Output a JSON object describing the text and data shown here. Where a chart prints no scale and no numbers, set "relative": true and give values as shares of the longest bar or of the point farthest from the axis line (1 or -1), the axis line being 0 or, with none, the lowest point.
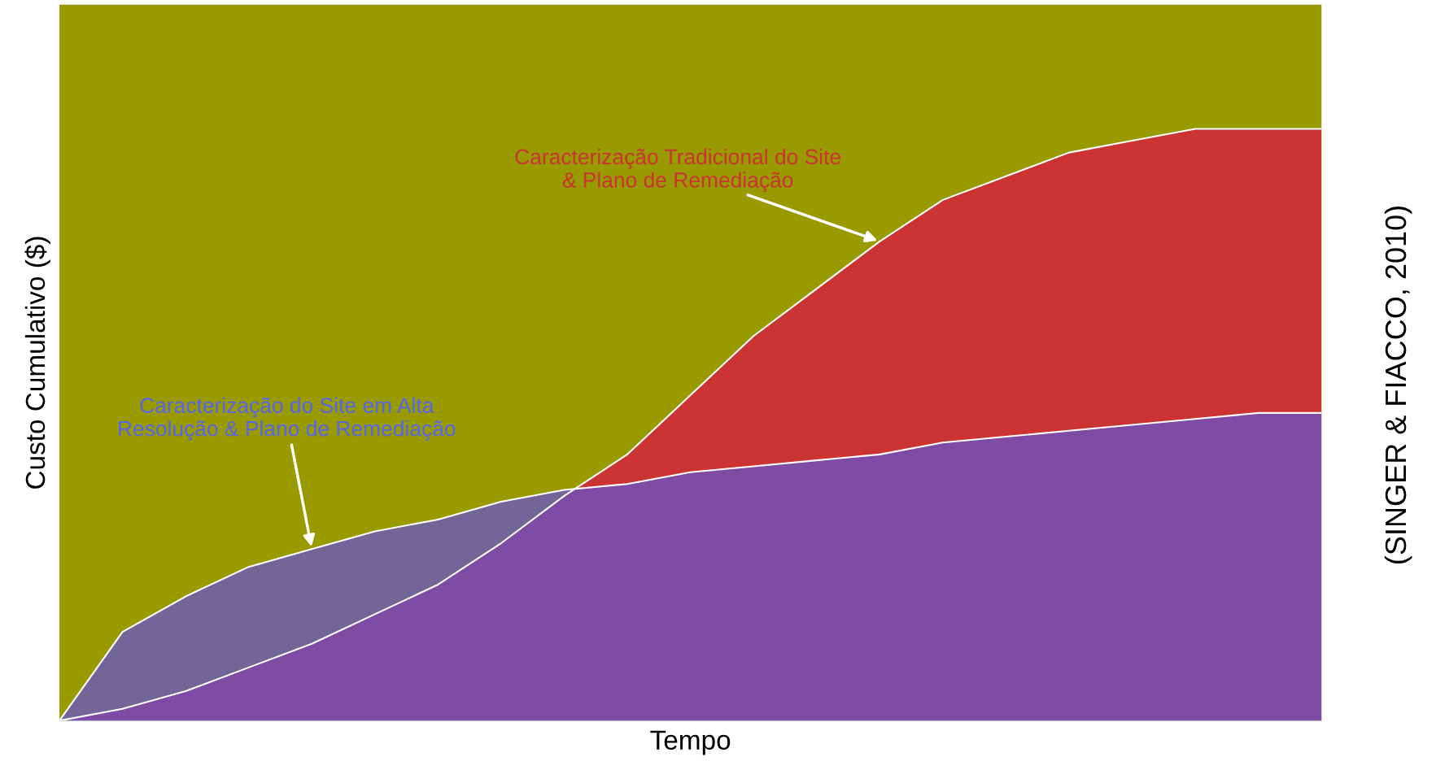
{
  "chart_data": {
    "type": "area",
    "relative": true,
    "xlabel": "Tempo",
    "ylabel": "Custo Cumulativo ($)",
    "categories": [
      null,
      null,
      null,
      null,
      null,
      null,
      null,
      null,
      null,
      null,
      null,
      null,
      null,
      null,
      null,
      null,
      null,
      null,
      null,
      null,
      null
    ],
    "series": [
      {
        "name": "Caracterização Tradicional do Site & Plano de Remediação",
        "color": "#cc3333",
        "values": [
          0,
          0.02,
          0.05,
          0.09,
          0.13,
          0.18,
          0.23,
          0.3,
          0.38,
          0.45,
          0.55,
          0.65,
          0.73,
          0.81,
          0.88,
          0.92,
          0.96,
          0.98,
          1,
          1,
          1
        ]
      },
      {
        "name": "Caracterização do Site em Alta Resolução & Plano de Remediação",
        "color": "#6655cc",
        "values": [
          0,
          0.15,
          0.21,
          0.26,
          0.29,
          0.32,
          0.34,
          0.37,
          0.39,
          0.4,
          0.42,
          0.43,
          0.44,
          0.45,
          0.47,
          0.48,
          0.49,
          0.5,
          0.51,
          0.52,
          0.52
        ]
      }
    ],
    "annotations": [
      "(SINGER & FIACCO, 2010)"
    ],
    "legend": false
  }
}
